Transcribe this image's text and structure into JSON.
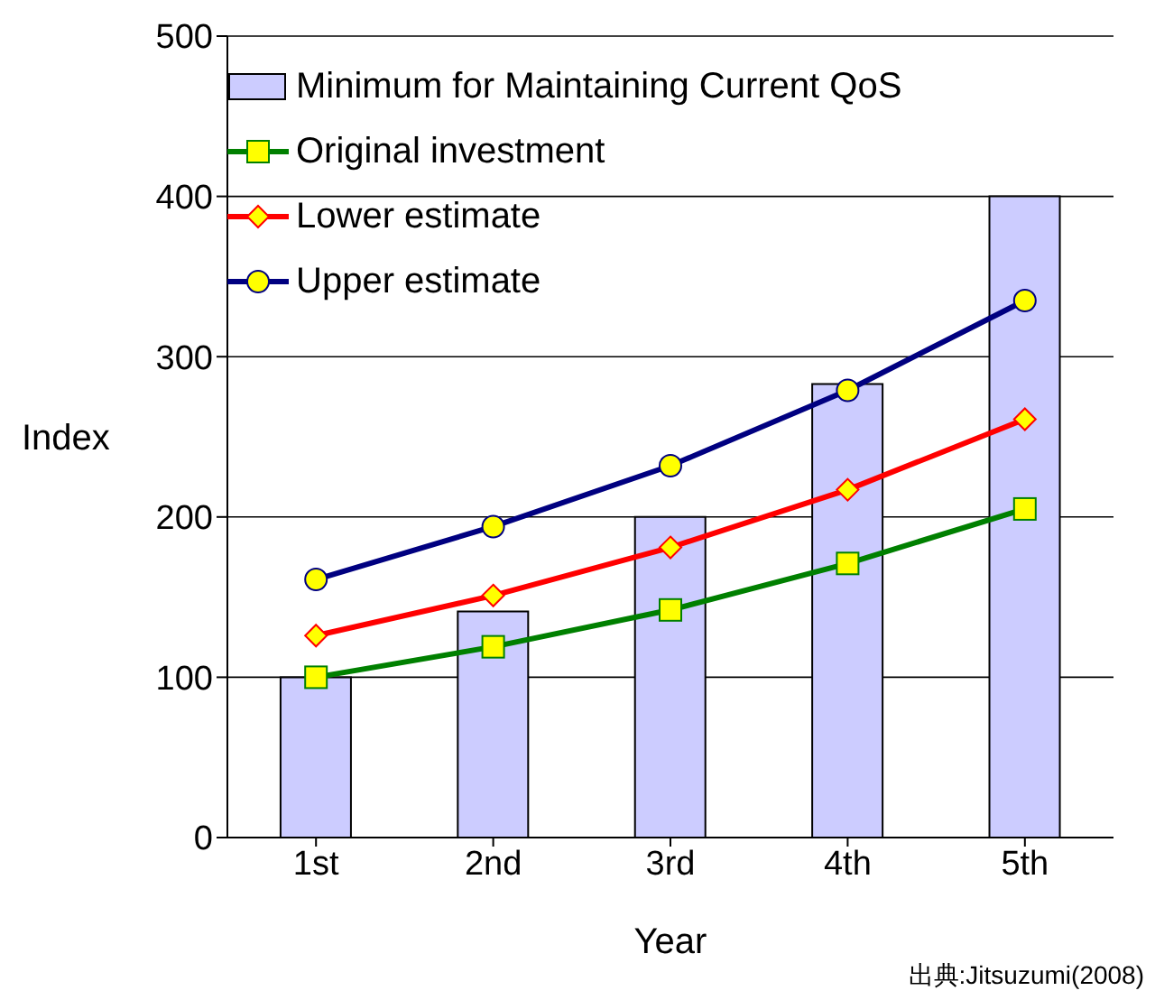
{
  "chart_data": {
    "type": "bar",
    "xlabel": "Year",
    "ylabel": "Index",
    "categories": [
      "1st",
      "2nd",
      "3rd",
      "4th",
      "5th"
    ],
    "series": [
      {
        "name": "Minimum for Maintaining Current QoS",
        "color": "#ccccff",
        "values": [
          100,
          141,
          200,
          283,
          400
        ]
      },
      {
        "name": "Original investment",
        "type": "line",
        "color": "#008000",
        "marker": "square",
        "values": [
          100,
          119,
          142,
          171,
          205
        ]
      },
      {
        "name": "Lower estimate",
        "type": "line",
        "color": "#ff0000",
        "marker": "diamond",
        "values": [
          126,
          151,
          181,
          217,
          261
        ]
      },
      {
        "name": "Upper estimate",
        "type": "line",
        "color": "#000080",
        "marker": "circle",
        "values": [
          161,
          194,
          232,
          279,
          335
        ]
      }
    ],
    "ylim": [
      0,
      500
    ],
    "yticks": [
      0,
      100,
      200,
      300,
      400,
      500
    ],
    "grid": "y",
    "legend": "top left",
    "annotations": [
      "出典:Jitsuzumi(2008)"
    ]
  }
}
